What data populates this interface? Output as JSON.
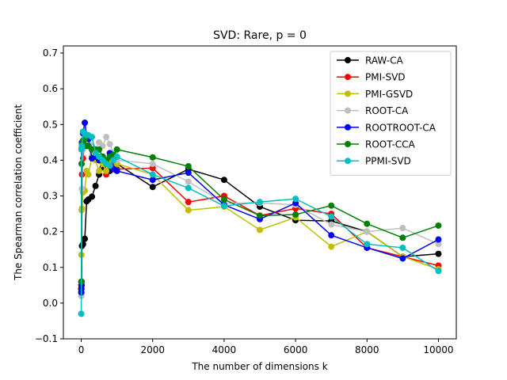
{
  "chart_data": {
    "type": "line",
    "title": "SVD: Rare, p = 0",
    "xlabel": "The number of dimensions k",
    "ylabel": "The Spearman correlation coefficient",
    "xlim": [
      -500,
      10500
    ],
    "ylim": [
      -0.1,
      0.72
    ],
    "xticks": [
      0,
      2000,
      4000,
      6000,
      8000,
      10000
    ],
    "xtick_labels": [
      "0",
      "2000",
      "4000",
      "6000",
      "8000",
      "10000"
    ],
    "yticks": [
      -0.1,
      0.0,
      0.1,
      0.2,
      0.3,
      0.4,
      0.5,
      0.6,
      0.7
    ],
    "ytick_labels": [
      "−0.1",
      "0.0",
      "0.1",
      "0.2",
      "0.3",
      "0.4",
      "0.5",
      "0.6",
      "0.7"
    ],
    "grid": false,
    "legend_position": "top-right",
    "x": [
      1,
      5,
      10,
      20,
      50,
      100,
      150,
      200,
      300,
      400,
      500,
      600,
      700,
      800,
      900,
      1000,
      2000,
      3000,
      4000,
      5000,
      6000,
      7000,
      8000,
      9000,
      10000
    ],
    "series": [
      {
        "name": "RAW-CA",
        "color": "#000000",
        "values": [
          0.04,
          0.05,
          0.06,
          0.16,
          0.165,
          0.18,
          0.285,
          0.29,
          0.298,
          0.328,
          0.36,
          0.38,
          0.37,
          0.37,
          0.38,
          0.39,
          0.325,
          0.375,
          0.345,
          0.27,
          0.232,
          0.23,
          0.2,
          0.13,
          0.138
        ]
      },
      {
        "name": "PMI-SVD",
        "color": "#ff0000",
        "values": [
          0.04,
          0.05,
          0.06,
          0.36,
          0.405,
          0.45,
          0.44,
          0.44,
          0.41,
          0.41,
          0.4,
          0.39,
          0.36,
          0.385,
          0.39,
          0.375,
          0.378,
          0.283,
          0.3,
          0.245,
          0.265,
          0.25,
          0.155,
          0.13,
          0.105
        ]
      },
      {
        "name": "PMI-GSVD",
        "color": "#bfbf00",
        "values": [
          0.03,
          0.135,
          0.26,
          0.265,
          0.31,
          0.315,
          0.37,
          0.36,
          0.41,
          0.4,
          0.37,
          0.39,
          0.37,
          0.395,
          0.4,
          0.39,
          0.36,
          0.26,
          0.27,
          0.205,
          0.24,
          0.158,
          0.2,
          0.13,
          0.095
        ]
      },
      {
        "name": "ROOT-CA",
        "color": "#bfbfbf",
        "values": [
          0.02,
          0.025,
          0.03,
          0.32,
          0.43,
          0.44,
          0.46,
          0.45,
          0.44,
          0.43,
          0.45,
          0.44,
          0.465,
          0.445,
          0.42,
          0.4,
          0.39,
          0.34,
          0.28,
          0.28,
          0.275,
          0.22,
          0.2,
          0.21,
          0.165
        ]
      },
      {
        "name": "ROOTROOT-CA",
        "color": "#0000ff",
        "values": [
          0.03,
          0.04,
          0.05,
          0.45,
          0.475,
          0.505,
          0.47,
          0.46,
          0.405,
          0.41,
          0.4,
          0.41,
          0.4,
          0.42,
          0.375,
          0.37,
          0.345,
          0.365,
          0.275,
          0.235,
          0.28,
          0.19,
          0.155,
          0.125,
          0.178
        ]
      },
      {
        "name": "ROOT-CCA",
        "color": "#008000",
        "values": [
          0.06,
          0.06,
          0.39,
          0.445,
          0.455,
          0.46,
          0.44,
          0.44,
          0.43,
          0.43,
          0.43,
          0.41,
          0.4,
          0.41,
          0.415,
          0.43,
          0.408,
          0.383,
          0.29,
          0.245,
          0.248,
          0.273,
          0.222,
          0.183,
          0.217
        ]
      },
      {
        "name": "PPMI-SVD",
        "color": "#00bfbf",
        "values": [
          -0.03,
          0.43,
          0.435,
          0.44,
          0.48,
          0.475,
          0.47,
          0.47,
          0.465,
          0.42,
          0.41,
          0.4,
          0.39,
          0.385,
          0.4,
          0.41,
          0.36,
          0.322,
          0.272,
          0.283,
          0.292,
          0.242,
          0.165,
          0.155,
          0.09
        ]
      }
    ]
  }
}
